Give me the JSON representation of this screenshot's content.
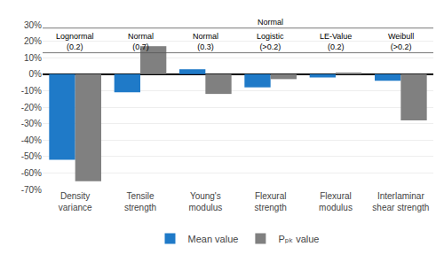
{
  "chart_data": {
    "type": "bar",
    "categories": [
      "Density\nvariance",
      "Tensile\nstrength",
      "Young's\nmodulus",
      "Flexural\nstrength",
      "Flexural\nmodulus",
      "Interlaminar\nshear strength"
    ],
    "series": [
      {
        "name": "Mean value",
        "color": "#1f7ac8",
        "values": [
          -52,
          -11,
          3,
          -8,
          -2,
          -4
        ]
      },
      {
        "name": "Pₚₖ value",
        "color": "#808080",
        "values": [
          -65,
          17,
          -12,
          -3,
          1,
          -28
        ]
      }
    ],
    "ylim": [
      -70,
      30
    ],
    "yticks": [
      {
        "value": -70,
        "label": "-70%"
      },
      {
        "value": -60,
        "label": "-60%"
      },
      {
        "value": -50,
        "label": "-50%"
      },
      {
        "value": -40,
        "label": "-40%"
      },
      {
        "value": -30,
        "label": "-30%"
      },
      {
        "value": -20,
        "label": "-20%"
      },
      {
        "value": -10,
        "label": "-10%"
      },
      {
        "value": 0,
        "label": "0%"
      },
      {
        "value": 10,
        "label": "10%"
      },
      {
        "value": 20,
        "label": "20%"
      },
      {
        "value": 30,
        "label": "30%"
      }
    ],
    "grid": true,
    "legend": "bottom",
    "annotations": [
      {
        "text": "Normal",
        "category": "Flexural\nstrength",
        "y": 28
      },
      {
        "text": "Lognormal\n(0.2)",
        "category": "Density\nvariance",
        "y": 13
      },
      {
        "text": "Normal\n(0.7)",
        "category": "Tensile\nstrength",
        "y": 13
      },
      {
        "text": "Normal\n(0.3)",
        "category": "Young's\nmodulus",
        "y": 13
      },
      {
        "text": "Logistic\n(>0.2)",
        "category": "Flexural\nstrength",
        "y": 13
      },
      {
        "text": "LE-Value\n(0.2)",
        "category": "Flexural\nmodulus",
        "y": 13
      },
      {
        "text": "Weibull\n(>0.2)",
        "category": "Interlaminar\nshear strength",
        "y": 13
      }
    ]
  }
}
